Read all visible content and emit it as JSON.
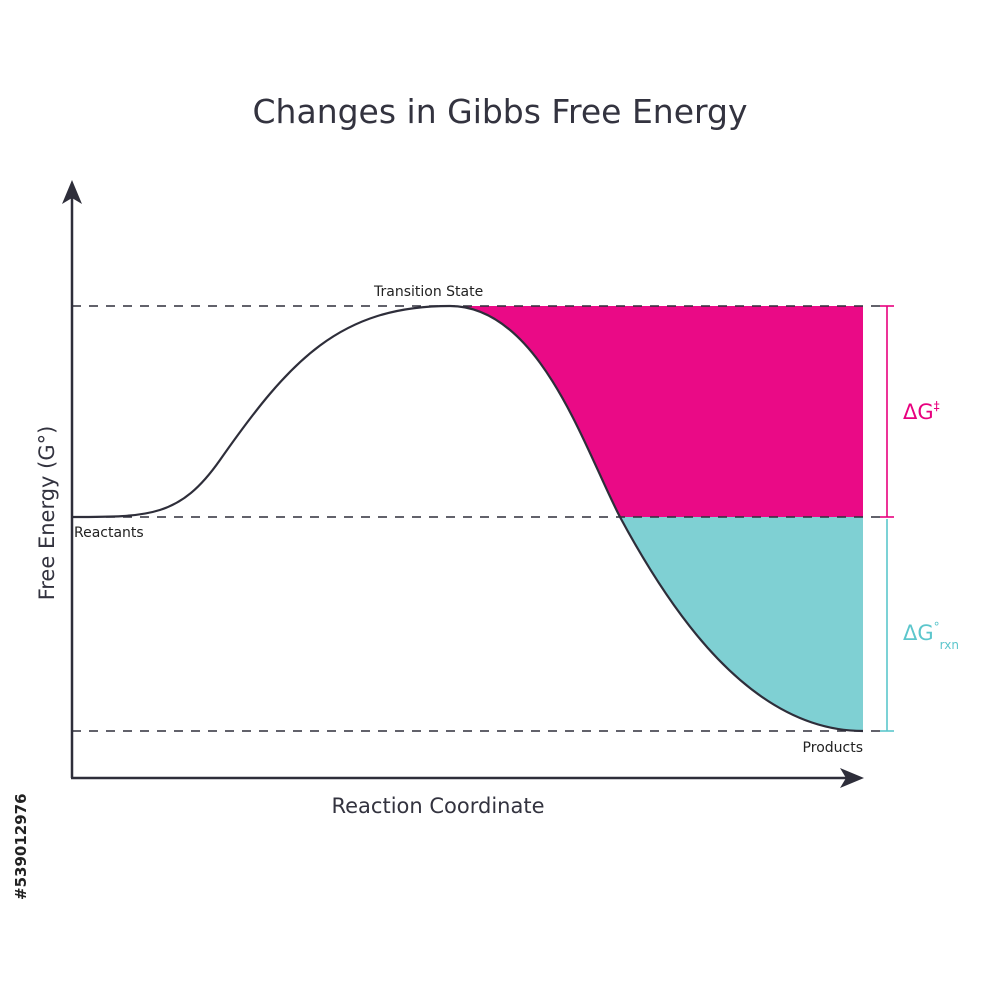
{
  "title": "Changes in Gibbs Free Energy",
  "axes": {
    "y_label": "Free Energy (G°)",
    "x_label": "Reaction Coordinate"
  },
  "levels": {
    "transition_state": "Transition State",
    "reactants": "Reactants",
    "products": "Products"
  },
  "brackets": {
    "activation": {
      "base": "ΔG",
      "sup": "‡",
      "sub": "",
      "color": "#e8007f"
    },
    "reaction": {
      "base": "ΔG",
      "sup": "°",
      "sub": "rxn",
      "color": "#5cc6cc"
    }
  },
  "colors": {
    "activation_fill": "#ea0a86",
    "reaction_fill": "#7fd0d3",
    "curve": "#2e2e3a"
  },
  "side_id": "#539012976"
}
